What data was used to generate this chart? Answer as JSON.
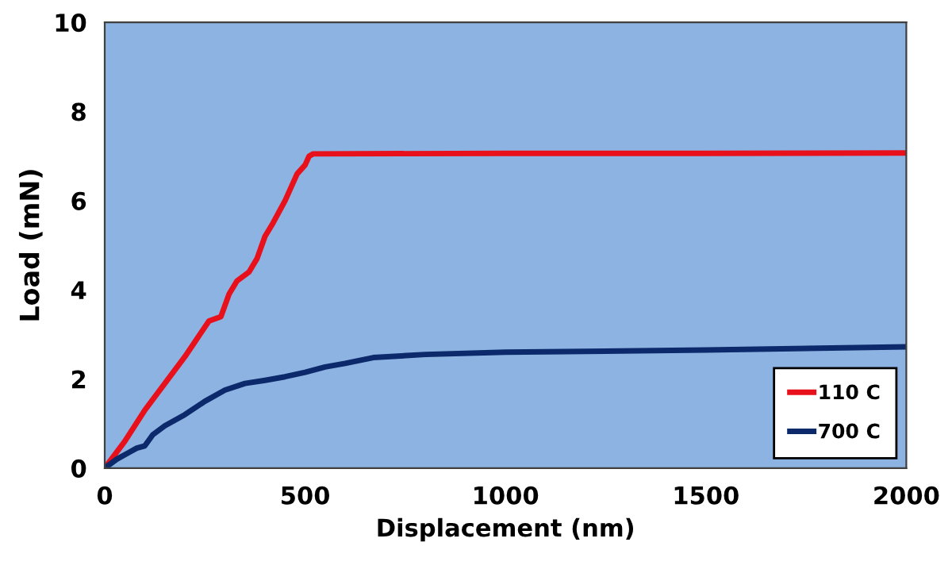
{
  "chart_data": {
    "type": "line",
    "xlabel": "Displacement (nm)",
    "ylabel": "Load (mN)",
    "xlim": [
      0,
      2000
    ],
    "xticks": [
      0,
      500,
      1000,
      1500,
      2000
    ],
    "ylim": [
      0,
      10
    ],
    "yticks": [
      0,
      2,
      4,
      6,
      8,
      10
    ],
    "grid": false,
    "legend": "bottom right",
    "marker": "none",
    "line_style": "solid",
    "series": [
      {
        "name": "110 C",
        "color": "#e8101a",
        "x": [
          0,
          50,
          100,
          150,
          200,
          230,
          260,
          290,
          310,
          330,
          360,
          380,
          400,
          420,
          450,
          480,
          500,
          510,
          520,
          1000,
          1500,
          2000
        ],
        "values": [
          0,
          0.6,
          1.3,
          1.9,
          2.5,
          2.9,
          3.3,
          3.4,
          3.9,
          4.2,
          4.4,
          4.7,
          5.2,
          5.5,
          6.0,
          6.6,
          6.8,
          7.0,
          7.05,
          7.06,
          7.06,
          7.07
        ]
      },
      {
        "name": "700 C",
        "color": "#0c2a6b",
        "x": [
          0,
          30,
          60,
          80,
          100,
          120,
          150,
          200,
          250,
          300,
          350,
          400,
          450,
          500,
          550,
          600,
          670,
          800,
          1000,
          1500,
          2000
        ],
        "values": [
          0,
          0.2,
          0.35,
          0.45,
          0.5,
          0.75,
          0.95,
          1.2,
          1.5,
          1.75,
          1.9,
          1.97,
          2.05,
          2.15,
          2.27,
          2.35,
          2.48,
          2.55,
          2.6,
          2.65,
          2.72
        ]
      }
    ]
  }
}
